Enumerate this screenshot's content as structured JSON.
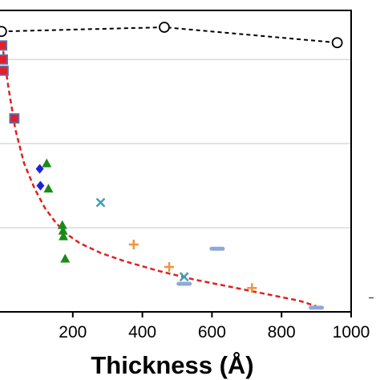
{
  "chart_data": {
    "type": "scatter",
    "title": "",
    "xlabel": "Thickness (Å)",
    "ylabel": "",
    "xlim": [
      -5,
      1000
    ],
    "ylim": [
      0,
      1.075
    ],
    "x_ticks": [
      200,
      400,
      600,
      800,
      1000
    ],
    "x_tick_labels": [
      "200",
      "400",
      "600",
      "800",
      "1000"
    ],
    "y_gridlines": [
      0.3,
      0.6,
      0.9
    ],
    "grid": "horizontal",
    "legend": "none",
    "colors": {
      "reference": "#000000",
      "squares": "#e0202a",
      "square_edge": "#5a6fb0",
      "diamonds": "#1f22d8",
      "triangles": "#1a8a1a",
      "crosses": "#3fa0b8",
      "plus": "#f0943a",
      "dash": "#8fa8d8",
      "fit": "#e02020",
      "grid": "#d9d9d9"
    },
    "series": [
      {
        "marker": "open-circle",
        "line": "dashed",
        "x": [
          -5,
          463,
          960
        ],
        "y": [
          1.0,
          1.015,
          0.96
        ]
      },
      {
        "marker": "square",
        "x": [
          -3,
          -1,
          1,
          32
        ],
        "y": [
          0.95,
          0.9,
          0.86,
          0.69
        ]
      },
      {
        "marker": "diamond",
        "x": [
          105,
          107
        ],
        "y": [
          0.51,
          0.45
        ]
      },
      {
        "marker": "triangle",
        "x": [
          125,
          130,
          170,
          172,
          173,
          178
        ],
        "y": [
          0.53,
          0.44,
          0.31,
          0.29,
          0.27,
          0.19
        ]
      },
      {
        "marker": "x",
        "x": [
          280,
          520
        ],
        "y": [
          0.39,
          0.125
        ]
      },
      {
        "marker": "plus",
        "x": [
          375,
          477,
          715
        ],
        "y": [
          0.24,
          0.16,
          0.085
        ]
      },
      {
        "marker": "dash",
        "x": [
          520,
          615,
          900
        ],
        "y": [
          0.1,
          0.225,
          0.015
        ]
      }
    ],
    "fit_curve": {
      "style": "dashed",
      "x": [
        0,
        15,
        35,
        60,
        90,
        120,
        150,
        180,
        220,
        280,
        350,
        450,
        550,
        650,
        750,
        850,
        900
      ],
      "y": [
        0.93,
        0.8,
        0.65,
        0.53,
        0.44,
        0.37,
        0.32,
        0.28,
        0.245,
        0.21,
        0.18,
        0.145,
        0.115,
        0.09,
        0.065,
        0.04,
        0.02
      ]
    },
    "outside_mark": {
      "y": 0.05
    }
  }
}
